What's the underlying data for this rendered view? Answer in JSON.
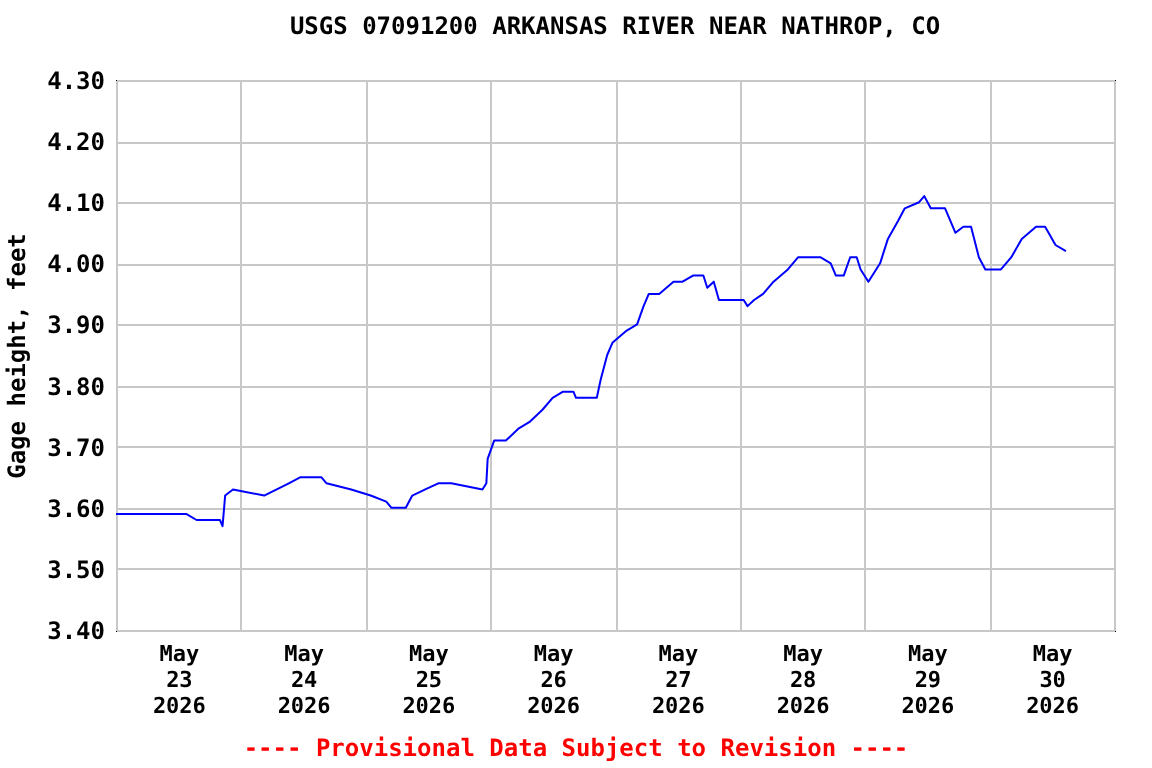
{
  "chart_data": {
    "type": "line",
    "title": "USGS 07091200 ARKANSAS RIVER NEAR NATHROP, CO",
    "ylabel": "Gage height, feet",
    "annotations": [
      "---- Provisional Data Subject to Revision ----"
    ],
    "xlim": [
      "2026-05-23T00:00",
      "2026-05-31T00:00"
    ],
    "xticks": [
      {
        "value": "2026-05-23T00:00",
        "label": null
      },
      {
        "value": "2026-05-23T12:00",
        "label": "May\n23\n2026"
      },
      {
        "value": "2026-05-24T00:00",
        "label": null
      },
      {
        "value": "2026-05-24T12:00",
        "label": "May\n24\n2026"
      },
      {
        "value": "2026-05-25T00:00",
        "label": null
      },
      {
        "value": "2026-05-25T12:00",
        "label": "May\n25\n2026"
      },
      {
        "value": "2026-05-26T00:00",
        "label": null
      },
      {
        "value": "2026-05-26T12:00",
        "label": "May\n26\n2026"
      },
      {
        "value": "2026-05-27T00:00",
        "label": null
      },
      {
        "value": "2026-05-27T12:00",
        "label": "May\n27\n2026"
      },
      {
        "value": "2026-05-28T00:00",
        "label": null
      },
      {
        "value": "2026-05-28T12:00",
        "label": "May\n28\n2026"
      },
      {
        "value": "2026-05-29T00:00",
        "label": null
      },
      {
        "value": "2026-05-29T12:00",
        "label": "May\n29\n2026"
      },
      {
        "value": "2026-05-30T00:00",
        "label": null
      },
      {
        "value": "2026-05-30T12:00",
        "label": "May\n30\n2026"
      },
      {
        "value": "2026-05-31T00:00",
        "label": null
      }
    ],
    "ylim": [
      3.4,
      4.3
    ],
    "yticks": [
      {
        "value": 3.4,
        "label": "3.40"
      },
      {
        "value": 3.5,
        "label": "3.50"
      },
      {
        "value": 3.6,
        "label": "3.60"
      },
      {
        "value": 3.7,
        "label": "3.70"
      },
      {
        "value": 3.8,
        "label": "3.80"
      },
      {
        "value": 3.9,
        "label": "3.90"
      },
      {
        "value": 4.0,
        "label": "4.00"
      },
      {
        "value": 4.1,
        "label": "4.10"
      },
      {
        "value": 4.2,
        "label": "4.20"
      },
      {
        "value": 4.3,
        "label": "4.30"
      }
    ],
    "grid": true,
    "x": [
      "2026-05-23T00:00",
      "2026-05-23T13:30",
      "2026-05-23T15:30",
      "2026-05-23T20:00",
      "2026-05-23T20:30",
      "2026-05-23T21:00",
      "2026-05-23T22:30",
      "2026-05-24T04:30",
      "2026-05-24T09:15",
      "2026-05-24T11:30",
      "2026-05-24T15:30",
      "2026-05-24T16:30",
      "2026-05-24T21:15",
      "2026-05-25T01:00",
      "2026-05-25T04:00",
      "2026-05-25T05:00",
      "2026-05-25T07:45",
      "2026-05-25T09:00",
      "2026-05-25T11:30",
      "2026-05-25T14:00",
      "2026-05-25T16:30",
      "2026-05-25T22:30",
      "2026-05-25T23:15",
      "2026-05-25T23:30",
      "2026-05-26T00:45",
      "2026-05-26T03:00",
      "2026-05-26T05:30",
      "2026-05-26T07:30",
      "2026-05-26T10:00",
      "2026-05-26T12:00",
      "2026-05-26T14:00",
      "2026-05-26T16:00",
      "2026-05-26T16:30",
      "2026-05-26T20:30",
      "2026-05-26T21:15",
      "2026-05-26T22:30",
      "2026-05-26T23:30",
      "2026-05-27T02:15",
      "2026-05-27T04:15",
      "2026-05-27T05:30",
      "2026-05-27T06:30",
      "2026-05-27T08:30",
      "2026-05-27T11:15",
      "2026-05-27T13:00",
      "2026-05-27T15:00",
      "2026-05-27T17:00",
      "2026-05-27T17:45",
      "2026-05-27T19:00",
      "2026-05-27T20:00",
      "2026-05-28T00:45",
      "2026-05-28T01:30",
      "2026-05-28T02:45",
      "2026-05-28T04:30",
      "2026-05-28T06:30",
      "2026-05-28T09:15",
      "2026-05-28T11:15",
      "2026-05-28T15:30",
      "2026-05-28T17:30",
      "2026-05-28T18:30",
      "2026-05-28T20:00",
      "2026-05-28T21:15",
      "2026-05-28T22:30",
      "2026-05-28T23:15",
      "2026-05-29T00:45",
      "2026-05-29T03:00",
      "2026-05-29T04:30",
      "2026-05-29T06:30",
      "2026-05-29T07:45",
      "2026-05-29T10:30",
      "2026-05-29T11:30",
      "2026-05-29T12:45",
      "2026-05-29T15:30",
      "2026-05-29T17:30",
      "2026-05-29T19:00",
      "2026-05-29T20:30",
      "2026-05-29T22:00",
      "2026-05-29T23:15",
      "2026-05-30T02:15",
      "2026-05-30T04:15",
      "2026-05-30T06:15",
      "2026-05-30T09:00",
      "2026-05-30T10:45",
      "2026-05-30T12:45",
      "2026-05-30T14:45"
    ],
    "series": [
      {
        "color": "#0000ff",
        "values": [
          3.59,
          3.59,
          3.58,
          3.58,
          3.57,
          3.62,
          3.63,
          3.62,
          3.64,
          3.65,
          3.65,
          3.64,
          3.63,
          3.62,
          3.61,
          3.6,
          3.6,
          3.62,
          3.63,
          3.64,
          3.64,
          3.63,
          3.64,
          3.68,
          3.71,
          3.71,
          3.73,
          3.74,
          3.76,
          3.78,
          3.79,
          3.79,
          3.78,
          3.78,
          3.81,
          3.85,
          3.87,
          3.89,
          3.9,
          3.93,
          3.95,
          3.95,
          3.97,
          3.97,
          3.98,
          3.98,
          3.96,
          3.97,
          3.94,
          3.94,
          3.93,
          3.94,
          3.95,
          3.97,
          3.99,
          4.01,
          4.01,
          4.0,
          3.98,
          3.98,
          4.01,
          4.01,
          3.99,
          3.97,
          4.0,
          4.04,
          4.07,
          4.09,
          4.1,
          4.11,
          4.09,
          4.09,
          4.05,
          4.06,
          4.06,
          4.01,
          3.99,
          3.99,
          4.01,
          4.04,
          4.06,
          4.06,
          4.03,
          4.02
        ]
      }
    ]
  }
}
